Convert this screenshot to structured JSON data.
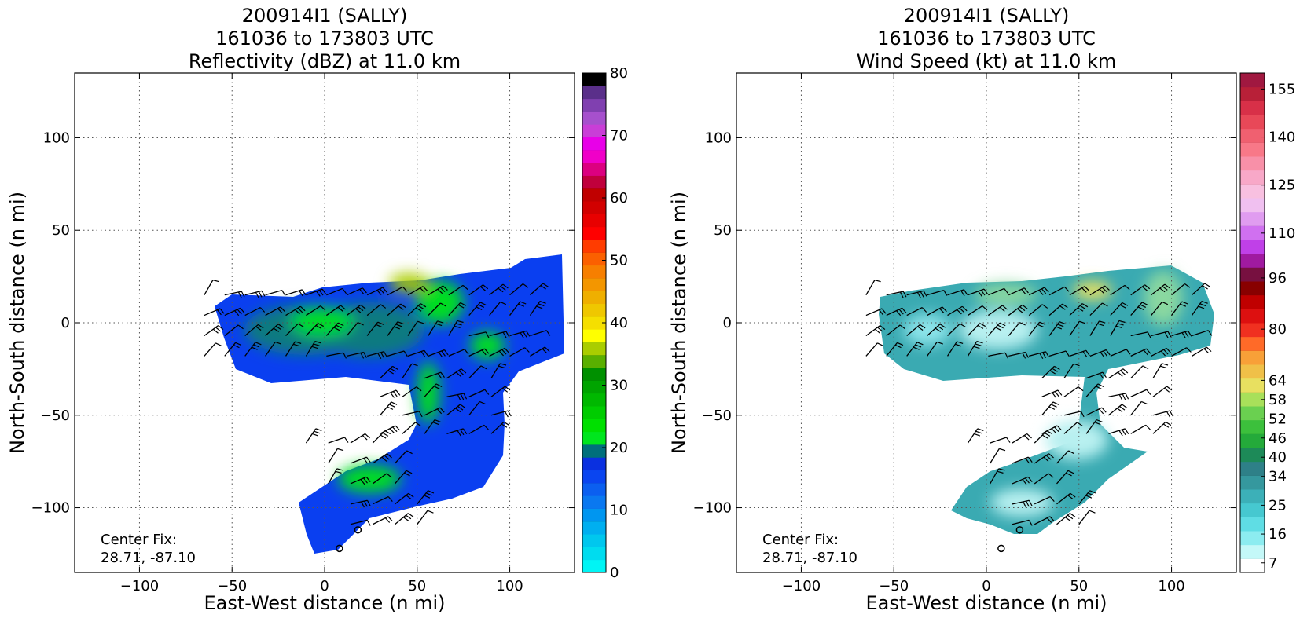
{
  "chart_data": [
    {
      "type": "heatmap",
      "title_lines": [
        "200914I1 (SALLY)",
        "161036 to 173803 UTC",
        "Reflectivity (dBZ) at 11.0 km"
      ],
      "xlabel": "East-West distance (n mi)",
      "ylabel": "North-South distance (n mi)",
      "xlim": [
        -135,
        135
      ],
      "ylim": [
        -135,
        135
      ],
      "xticks": [
        -100,
        -50,
        0,
        50,
        100
      ],
      "yticks": [
        -100,
        -50,
        0,
        50,
        100
      ],
      "xtick_labels": [
        "−100",
        "−50",
        "0",
        "50",
        "100"
      ],
      "ytick_labels": [
        "−100",
        "−50",
        "0",
        "50",
        "100"
      ],
      "grid": true,
      "annotation_lines": [
        "Center Fix:",
        "28.71, -87.10"
      ],
      "colorbar": {
        "min": 0,
        "max": 80,
        "tick_values": [
          0,
          10,
          20,
          30,
          40,
          50,
          60,
          70,
          80
        ],
        "tick_labels": [
          "0",
          "10",
          "20",
          "30",
          "40",
          "50",
          "60",
          "70",
          "80"
        ],
        "colors": [
          "#00f5f5",
          "#00dcef",
          "#00c7ee",
          "#00aff0",
          "#0096f0",
          "#0a78f0",
          "#0b5ff0",
          "#0a45f0",
          "#0a30e0",
          "#006f7c",
          "#00e61e",
          "#00e000",
          "#00cc00",
          "#00b800",
          "#00a400",
          "#009000",
          "#5aaf00",
          "#aacd00",
          "#ffff00",
          "#f5df00",
          "#efc700",
          "#efaf00",
          "#f39600",
          "#f77f00",
          "#fb6000",
          "#ff3c00",
          "#ff0000",
          "#e80000",
          "#d20000",
          "#c00000",
          "#c0003c",
          "#dc0080",
          "#f000c8",
          "#e800e8",
          "#c93ed7",
          "#a650cd",
          "#8040b0",
          "#5a2f8a",
          "#000000"
        ]
      },
      "storm_field": {
        "fill_color": "#0a3ff0",
        "high_color": "#00dd22",
        "core_color": "#0b7a80"
      },
      "circles": [
        [
          18,
          -112
        ],
        [
          8,
          -122
        ]
      ]
    },
    {
      "type": "heatmap",
      "title_lines": [
        "200914I1 (SALLY)",
        "161036 to 173803 UTC",
        "Wind Speed (kt) at 11.0 km"
      ],
      "xlabel": "East-West distance (n mi)",
      "ylabel": "North-South distance (n mi)",
      "xlim": [
        -135,
        135
      ],
      "ylim": [
        -135,
        135
      ],
      "xticks": [
        -100,
        -50,
        0,
        50,
        100
      ],
      "yticks": [
        -100,
        -50,
        0,
        50,
        100
      ],
      "xtick_labels": [
        "−100",
        "−50",
        "0",
        "50",
        "100"
      ],
      "ytick_labels": [
        "−100",
        "−50",
        "0",
        "50",
        "100"
      ],
      "grid": true,
      "annotation_lines": [
        "Center Fix:",
        "28.71, -87.10"
      ],
      "colorbar": {
        "min": 4,
        "max": 160,
        "tick_values": [
          7,
          16,
          25,
          34,
          40,
          46,
          52,
          58,
          64,
          80,
          96,
          110,
          125,
          140,
          155
        ],
        "tick_labels": [
          "7",
          "16",
          "25",
          "34",
          "40",
          "46",
          "52",
          "58",
          "64",
          "80",
          "96",
          "110",
          "125",
          "140",
          "155"
        ],
        "colors": [
          "#ffffff",
          "#c4f8f8",
          "#8cecf0",
          "#5fdde4",
          "#46c8d0",
          "#3cb0b8",
          "#35989e",
          "#2e8088",
          "#1d8a58",
          "#24aa3a",
          "#3cc03c",
          "#6ad050",
          "#a8e05a",
          "#e8e060",
          "#f0c048",
          "#f8a038",
          "#ff6a28",
          "#f03020",
          "#dd1010",
          "#c00000",
          "#880000",
          "#771040",
          "#a01aa0",
          "#c040e8",
          "#d070f0",
          "#e09cf0",
          "#f0c0f0",
          "#f8c0e0",
          "#f8a8c8",
          "#f890a8",
          "#f87888",
          "#f06070",
          "#e84858",
          "#d83048",
          "#b82038",
          "#a01840"
        ]
      },
      "storm_field": {
        "fill_color": "#3aaab2",
        "high_color": "#8ad8a0",
        "core_color": "#b8f0f0"
      },
      "circles": [
        [
          18,
          -112
        ],
        [
          8,
          -122
        ]
      ]
    }
  ]
}
